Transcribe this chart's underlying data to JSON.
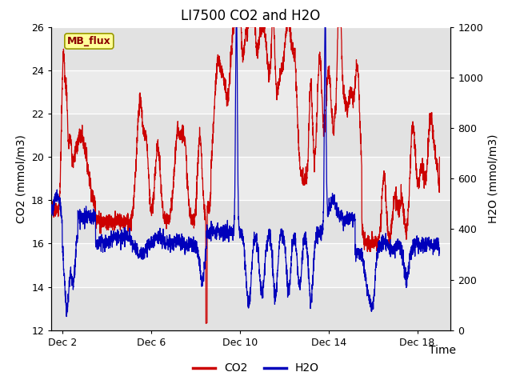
{
  "title": "LI7500 CO2 and H2O",
  "xlabel": "Time",
  "ylabel_left": "CO2 (mmol/m3)",
  "ylabel_right": "H2O (mmol/m3)",
  "xlim_days": [
    1.5,
    19.5
  ],
  "ylim_left": [
    12,
    26
  ],
  "ylim_right": [
    0,
    1200
  ],
  "yticks_left": [
    12,
    14,
    16,
    18,
    20,
    22,
    24,
    26
  ],
  "yticks_right": [
    0,
    200,
    400,
    600,
    800,
    1000,
    1200
  ],
  "xtick_labels": [
    "Dec 2",
    "Dec 6",
    "Dec 10",
    "Dec 14",
    "Dec 18"
  ],
  "xtick_positions": [
    2,
    6,
    10,
    14,
    18
  ],
  "co2_color": "#cc0000",
  "h2o_color": "#0000bb",
  "background_color": "#ffffff",
  "plot_bg_color": "#f2f2f2",
  "annotation_text": "MB_flux",
  "annotation_bg": "#ffff99",
  "annotation_border": "#999900",
  "legend_co2": "CO2",
  "legend_h2o": "H2O",
  "title_fontsize": 12,
  "axis_fontsize": 10,
  "tick_fontsize": 9,
  "legend_fontsize": 10
}
